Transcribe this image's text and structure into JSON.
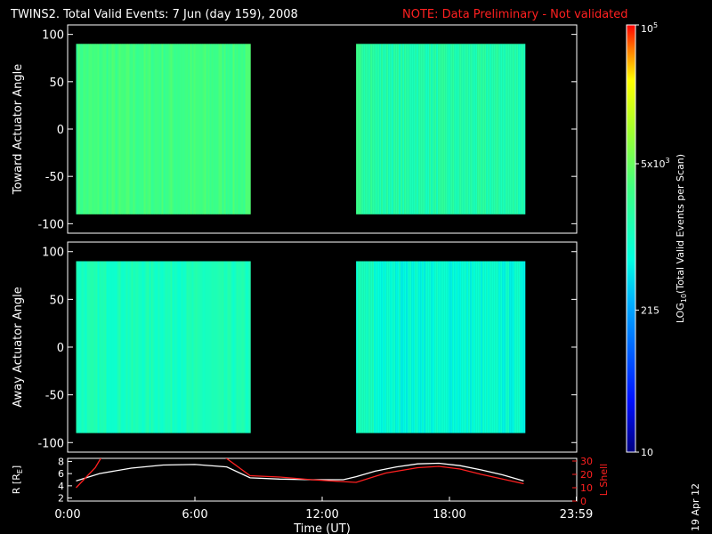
{
  "header": {
    "title": "TWINS2. Total Valid Events:  7 Jun (day 159), 2008",
    "note": "NOTE: Data Preliminary - Not validated"
  },
  "footer": {
    "date_stamp": "19 Apr 12"
  },
  "colors": {
    "note": "#ff2020",
    "r_line": "#ffffff",
    "lshell_line": "#ff2020",
    "background": "#000000"
  },
  "chart_data": [
    {
      "type": "heatmap",
      "ylabel": "Toward Actuator Angle",
      "ylim": [
        -110,
        110
      ],
      "yticks": [
        "100",
        "50",
        "0",
        "-50",
        "-100"
      ],
      "ytick_values": [
        100,
        50,
        0,
        -50,
        -100
      ],
      "xlim": [
        0,
        24
      ],
      "angle_range": [
        -90,
        90
      ],
      "blocks": [
        {
          "t_start": 0.4,
          "t_end": 8.6,
          "level_log10": 3.45
        },
        {
          "t_start": 13.6,
          "t_end": 21.5,
          "level_log10": 3.15
        }
      ]
    },
    {
      "type": "heatmap",
      "ylabel": "Away Actuator Angle",
      "ylim": [
        -110,
        110
      ],
      "yticks": [
        "100",
        "50",
        "0",
        "-50",
        "-100"
      ],
      "ytick_values": [
        100,
        50,
        0,
        -50,
        -100
      ],
      "xlim": [
        0,
        24
      ],
      "angle_range": [
        -90,
        90
      ],
      "blocks": [
        {
          "t_start": 0.4,
          "t_end": 8.6,
          "level_log10": 3.05
        },
        {
          "t_start": 13.6,
          "t_end": 21.5,
          "level_log10": 2.85
        }
      ]
    },
    {
      "type": "line",
      "xlabel": "Time (UT)",
      "xticks": [
        "0:00",
        "6:00",
        "12:00",
        "18:00",
        "23:59"
      ],
      "xtick_values": [
        0,
        6,
        12,
        18,
        23.98
      ],
      "xlim": [
        0,
        24
      ],
      "left_axis": {
        "label": "R [R",
        "label_sub": "E",
        "label_end": "]",
        "ticks": [
          "8",
          "6",
          "4",
          "2"
        ],
        "tick_values": [
          8,
          6,
          4,
          2
        ],
        "range": [
          1.5,
          8.5
        ]
      },
      "right_axis": {
        "label": "L Shell",
        "ticks": [
          "30",
          "20",
          "10",
          "0"
        ],
        "tick_values": [
          30,
          20,
          10,
          0
        ],
        "range": [
          0,
          32
        ]
      },
      "series": [
        {
          "axis": "left",
          "x": [
            0.4,
            1.5,
            3,
            4.5,
            6,
            7.5,
            8.6,
            10,
            11.5,
            13,
            13.6,
            14.5,
            15.5,
            16.5,
            17.5,
            18.5,
            19.5,
            20.5,
            21.5
          ],
          "y": [
            4.8,
            6.0,
            6.9,
            7.4,
            7.5,
            7.1,
            5.3,
            5.1,
            5.0,
            5.0,
            5.5,
            6.4,
            7.1,
            7.6,
            7.7,
            7.3,
            6.6,
            5.8,
            4.8
          ]
        },
        {
          "axis": "right",
          "x": [
            0.4,
            1.3,
            1.6,
            null,
            7.4,
            8.6,
            10,
            11.5,
            13.6,
            15,
            16.5,
            17.5,
            18.5,
            19.5,
            21.5
          ],
          "y": [
            10,
            25,
            33,
            null,
            33,
            19,
            18,
            16,
            14,
            21,
            25,
            26,
            24,
            20,
            13
          ]
        }
      ]
    }
  ],
  "colorbar": {
    "label": "LOG",
    "label_sub": "10",
    "label_end": "(Total Valid Events per Scan)",
    "range_log10": [
      1,
      5
    ],
    "ticks": [
      {
        "text": "10",
        "log10": 1
      },
      {
        "text": "215",
        "log10": 2.33
      },
      {
        "text": "5x10",
        "sup": "3",
        "log10": 3.7
      },
      {
        "text": "10",
        "sup": "5",
        "log10": 5
      }
    ]
  }
}
